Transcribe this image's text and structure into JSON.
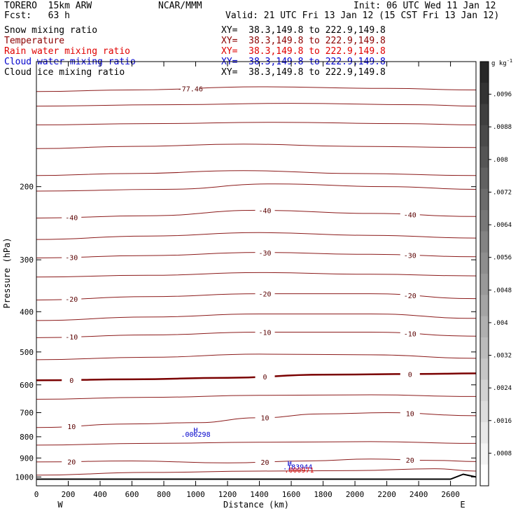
{
  "header": {
    "model": "TORERO  15km ARW",
    "org": "NCAR/MMM",
    "init": "Init: 06 UTC Wed 11 Jan 12",
    "fcst": "Fcst:   63 h",
    "valid": "Valid: 21 UTC Fri 13 Jan 12 (15 CST Fri 13 Jan 12)"
  },
  "fields": [
    {
      "name": "Snow mixing ratio",
      "xy": "XY=  38.3,149.8 to 222.9,149.8",
      "color": "#000000"
    },
    {
      "name": "Temperature",
      "xy": "XY=  38.3,149.8 to 222.9,149.8",
      "color": "#8b0000"
    },
    {
      "name": "Rain water mixing ratio",
      "xy": "XY=  38.3,149.8 to 222.9,149.8",
      "color": "#e00000"
    },
    {
      "name": "Cloud water mixing ratio",
      "xy": "XY=  38.3,149.8 to 222.9,149.8",
      "color": "#0000cc"
    },
    {
      "name": "Cloud ice mixing ratio",
      "xy": "XY=  38.3,149.8 to 222.9,149.8",
      "color": "#000000"
    }
  ],
  "chart_data": {
    "type": "cross-section contour",
    "xlabel": "Distance (km)",
    "ylabel": "Pressure (hPa)",
    "xlim": [
      0,
      2760
    ],
    "ylim": [
      1050,
      100
    ],
    "y_scale": "log",
    "x_ticks": [
      "0",
      "200",
      "400",
      "600",
      "800",
      "1000",
      "1200",
      "1400",
      "1600",
      "1800",
      "2000",
      "2200",
      "2400",
      "2600"
    ],
    "y_ticks": [
      "200",
      "300",
      "400",
      "500",
      "600",
      "700",
      "800",
      "900",
      "1000"
    ],
    "x_end_labels": {
      "west": "W",
      "east": "E"
    },
    "colorbar": {
      "unit": "g kg",
      "unit_exp": "-1",
      "ticks": [
        ".0096",
        ".0088",
        ".008",
        ".0072",
        ".0064",
        ".0056",
        ".0048",
        ".004",
        ".0032",
        ".0024",
        ".0016",
        ".0008"
      ]
    },
    "temperature_contours": [
      {
        "value": -77.46,
        "label": "-77.46",
        "points": [
          [
            0,
            118
          ],
          [
            600,
            117
          ],
          [
            1400,
            115
          ],
          [
            2200,
            116
          ],
          [
            2760,
            117
          ]
        ]
      },
      {
        "value": -70,
        "points": [
          [
            0,
            128
          ],
          [
            800,
            127
          ],
          [
            1600,
            126
          ],
          [
            2400,
            127
          ],
          [
            2760,
            128
          ]
        ]
      },
      {
        "value": -60,
        "points": [
          [
            0,
            142
          ],
          [
            700,
            141
          ],
          [
            1500,
            140
          ],
          [
            2300,
            141
          ],
          [
            2760,
            142
          ]
        ]
      },
      {
        "value": -55,
        "points": [
          [
            0,
            162
          ],
          [
            600,
            160
          ],
          [
            1300,
            158
          ],
          [
            2000,
            160
          ],
          [
            2760,
            161
          ]
        ]
      },
      {
        "value": -50,
        "points": [
          [
            0,
            188
          ],
          [
            600,
            186
          ],
          [
            1300,
            183
          ],
          [
            2000,
            186
          ],
          [
            2760,
            188
          ]
        ]
      },
      {
        "value": -45,
        "points": [
          [
            0,
            205
          ],
          [
            800,
            203
          ],
          [
            1500,
            197
          ],
          [
            2200,
            200
          ],
          [
            2760,
            203
          ]
        ]
      },
      {
        "value": -40,
        "label": "-40",
        "points": [
          [
            0,
            238
          ],
          [
            700,
            235
          ],
          [
            1400,
            228
          ],
          [
            2100,
            232
          ],
          [
            2760,
            236
          ]
        ]
      },
      {
        "value": -35,
        "points": [
          [
            0,
            268
          ],
          [
            700,
            263
          ],
          [
            1400,
            258
          ],
          [
            2100,
            262
          ],
          [
            2760,
            266
          ]
        ]
      },
      {
        "value": -30,
        "label": "-30",
        "points": [
          [
            0,
            297
          ],
          [
            700,
            293
          ],
          [
            1400,
            288
          ],
          [
            2100,
            291
          ],
          [
            2760,
            295
          ]
        ]
      },
      {
        "value": -25,
        "points": [
          [
            0,
            330
          ],
          [
            700,
            327
          ],
          [
            1400,
            322
          ],
          [
            2100,
            325
          ],
          [
            2760,
            328
          ]
        ]
      },
      {
        "value": -20,
        "label": "-20",
        "points": [
          [
            0,
            375
          ],
          [
            700,
            368
          ],
          [
            1400,
            362
          ],
          [
            2100,
            362
          ],
          [
            2760,
            372
          ]
        ]
      },
      {
        "value": -15,
        "points": [
          [
            0,
            420
          ],
          [
            700,
            412
          ],
          [
            1400,
            405
          ],
          [
            2100,
            405
          ],
          [
            2760,
            415
          ]
        ]
      },
      {
        "value": -10,
        "label": "-10",
        "points": [
          [
            0,
            462
          ],
          [
            700,
            455
          ],
          [
            1400,
            448
          ],
          [
            2100,
            448
          ],
          [
            2760,
            458
          ]
        ]
      },
      {
        "value": -5,
        "points": [
          [
            0,
            522
          ],
          [
            700,
            515
          ],
          [
            1400,
            506
          ],
          [
            2100,
            508
          ],
          [
            2760,
            518
          ]
        ]
      },
      {
        "value": 0,
        "label": "0",
        "points": [
          [
            0,
            585
          ],
          [
            600,
            582
          ],
          [
            1200,
            577
          ],
          [
            1800,
            567
          ],
          [
            2400,
            565
          ],
          [
            2760,
            563
          ]
        ]
      },
      {
        "value": 5,
        "points": [
          [
            0,
            650
          ],
          [
            700,
            643
          ],
          [
            1400,
            636
          ],
          [
            2100,
            634
          ],
          [
            2760,
            640
          ]
        ]
      },
      {
        "value": 10,
        "label": "10",
        "points": [
          [
            0,
            760
          ],
          [
            600,
            745
          ],
          [
            1000,
            740
          ],
          [
            1400,
            720
          ],
          [
            1800,
            705
          ],
          [
            2200,
            700
          ],
          [
            2760,
            712
          ]
        ]
      },
      {
        "value": 15,
        "points": [
          [
            0,
            838
          ],
          [
            700,
            830
          ],
          [
            1400,
            825
          ],
          [
            2100,
            822
          ],
          [
            2760,
            830
          ]
        ]
      },
      {
        "value": 20,
        "label": "20",
        "points": [
          [
            0,
            920
          ],
          [
            600,
            915
          ],
          [
            1200,
            925
          ],
          [
            1700,
            915
          ],
          [
            2100,
            905
          ],
          [
            2500,
            912
          ],
          [
            2760,
            918
          ]
        ]
      },
      {
        "value": 25,
        "points": [
          [
            0,
            990
          ],
          [
            700,
            975
          ],
          [
            1400,
            968
          ],
          [
            2000,
            965
          ],
          [
            2500,
            955
          ],
          [
            2760,
            968
          ]
        ]
      }
    ],
    "surface_pressure": [
      [
        0,
        1012
      ],
      [
        2600,
        1012
      ],
      [
        2680,
        985
      ],
      [
        2760,
        1000
      ]
    ],
    "annotations": [
      {
        "text": "H",
        "x": 1000,
        "p": 782,
        "color": "#0000cc"
      },
      {
        "text": ".006298",
        "x": 1000,
        "p": 800,
        "color": "#0000cc"
      },
      {
        "text": "H",
        "x": 1590,
        "p": 940,
        "color": "#0000cc"
      },
      {
        "text": ".183944",
        "x": 1640,
        "p": 958,
        "color": "#0000cc"
      },
      {
        "text": ".000971",
        "x": 1650,
        "p": 975,
        "color": "#e00000"
      }
    ]
  }
}
